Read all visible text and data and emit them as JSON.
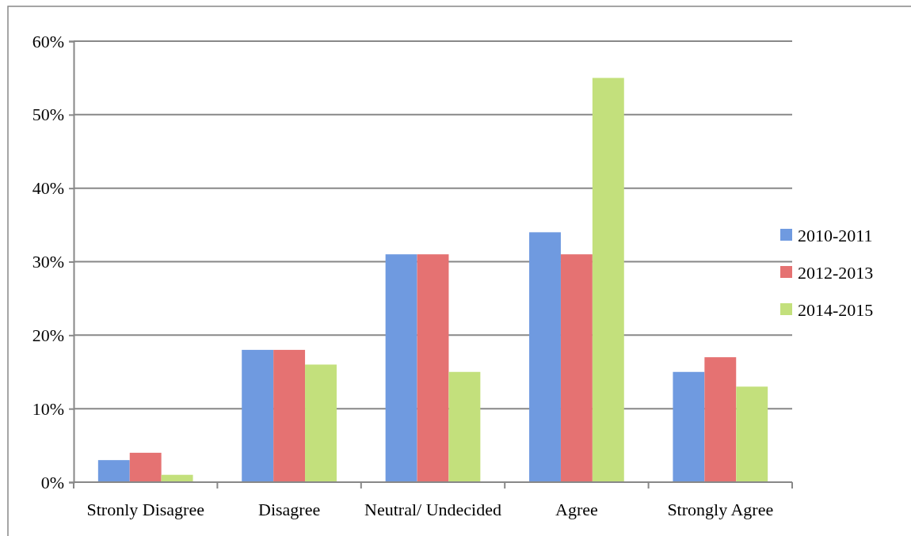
{
  "chart_data": {
    "type": "bar",
    "categories": [
      "Stronly Disagree",
      "Disagree",
      "Neutral/ Undecided",
      "Agree",
      "Strongly Agree"
    ],
    "series": [
      {
        "name": "2010-2011",
        "color": "#6f9ae0",
        "values": [
          3,
          18,
          31,
          34,
          15
        ]
      },
      {
        "name": "2012-2013",
        "color": "#e57272",
        "values": [
          4,
          18,
          31,
          31,
          17
        ]
      },
      {
        "name": "2014-2015",
        "color": "#c3e07c",
        "values": [
          1,
          16,
          15,
          55,
          13
        ]
      }
    ],
    "ylim": [
      0,
      60
    ],
    "yticks": [
      {
        "value": 0,
        "label": "0%"
      },
      {
        "value": 10,
        "label": "10%"
      },
      {
        "value": 20,
        "label": "20%"
      },
      {
        "value": 30,
        "label": "30%"
      },
      {
        "value": 40,
        "label": "40%"
      },
      {
        "value": 50,
        "label": "50%"
      },
      {
        "value": 60,
        "label": "60%"
      }
    ],
    "grid": "y",
    "legend": "right"
  }
}
